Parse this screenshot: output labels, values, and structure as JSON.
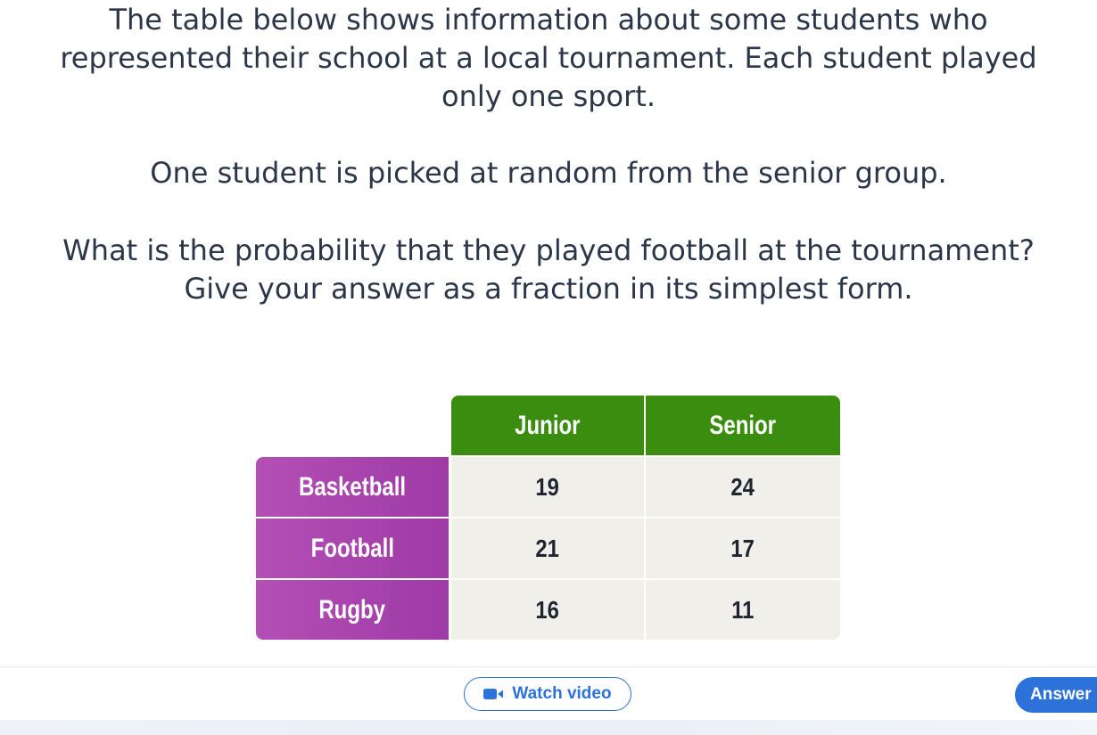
{
  "question": {
    "intro_lines": [
      "The table below shows information about some students who",
      "represented their school at a local tournament. Each student played",
      "only one sport."
    ],
    "pick": "One student is picked at random from the senior group.",
    "ask_lines": [
      "What is the probability that they played football at the tournament?",
      "Give your answer as a fraction in its simplest form."
    ]
  },
  "table": {
    "columns": [
      "Junior",
      "Senior"
    ],
    "rows": [
      {
        "label": "Basketball",
        "values": [
          "19",
          "24"
        ]
      },
      {
        "label": "Football",
        "values": [
          "21",
          "17"
        ]
      },
      {
        "label": "Rugby",
        "values": [
          "16",
          "11"
        ]
      }
    ],
    "colors": {
      "header_green": "#3a8d0f",
      "row_purple": "#a843ad",
      "cell_bg": "#f1efea"
    }
  },
  "actions": {
    "watch_video_label": "Watch video",
    "watch_video_icon": "video-camera-icon",
    "answer_label": "Answer",
    "accent": "#2d72d9"
  }
}
